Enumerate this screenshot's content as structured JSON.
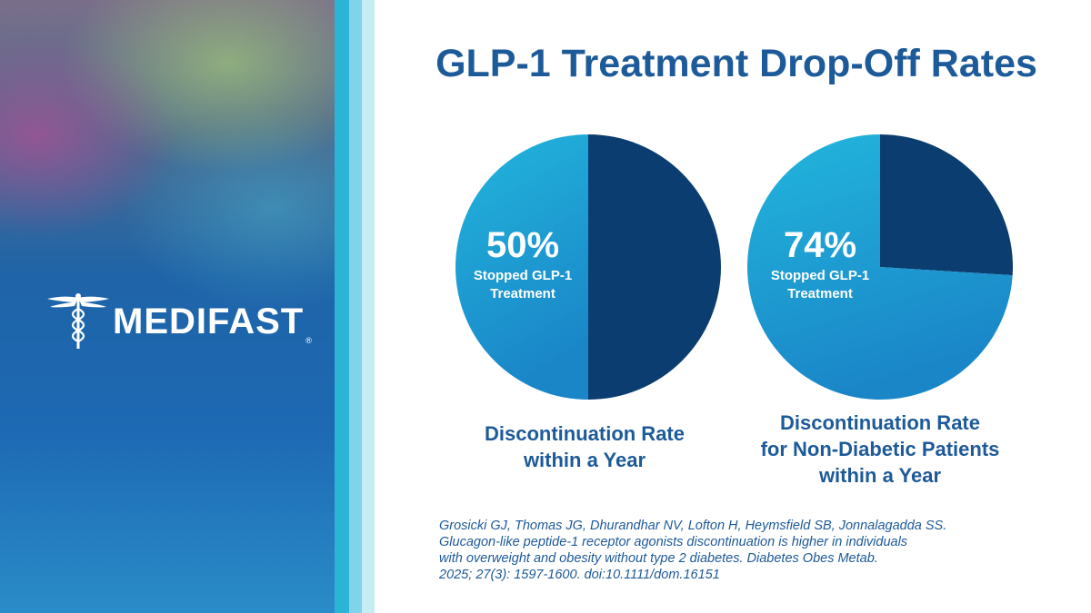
{
  "title": "GLP-1 Treatment Drop-Off Rates",
  "logo": {
    "text": "MEDIFAST",
    "registered": "®",
    "icon": "caduceus-icon"
  },
  "colors": {
    "title": "#1d5a99",
    "dark_slice": "#0b3d70",
    "light_slice_top": "#22b6dc",
    "light_slice_bottom": "#1a86c8"
  },
  "chart_data": [
    {
      "type": "pie",
      "slices": [
        {
          "label": "Stopped GLP-1 Treatment",
          "value": 50
        },
        {
          "label": "",
          "value": 50
        }
      ],
      "value_label": "50%",
      "slice_label_lines": [
        "Stopped GLP-1",
        "Treatment"
      ],
      "caption_lines": [
        "Discontinuation Rate",
        "within a Year"
      ]
    },
    {
      "type": "pie",
      "slices": [
        {
          "label": "Stopped GLP-1 Treatment",
          "value": 74
        },
        {
          "label": "",
          "value": 26
        }
      ],
      "value_label": "74%",
      "slice_label_lines": [
        "Stopped GLP-1",
        "Treatment"
      ],
      "caption_lines": [
        "Discontinuation Rate",
        "for Non-Diabetic Patients",
        "within a Year"
      ]
    }
  ],
  "citation_lines": [
    "Grosicki GJ, Thomas JG, Dhurandhar NV, Lofton H, Heymsfield SB, Jonnalagadda SS.",
    "Glucagon-like peptide-1 receptor agonists discontinuation is higher in individuals",
    "with overweight and obesity without type 2 diabetes. Diabetes Obes Metab.",
    "2025; 27(3): 1597-1600. doi:10.1111/dom.16151"
  ]
}
